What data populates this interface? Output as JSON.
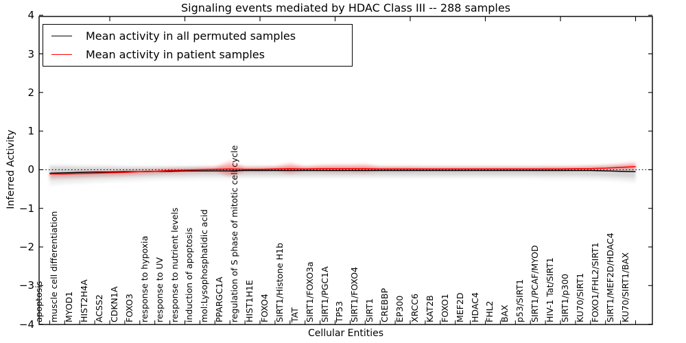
{
  "chart_data": {
    "type": "line",
    "title": "Signaling events mediated by HDAC Class III -- 288 samples",
    "xlabel": "Cellular Entities",
    "ylabel": "Inferred Activity",
    "ylim": [
      -4,
      4
    ],
    "yticks": [
      4,
      3,
      2,
      1,
      0,
      -1,
      -2,
      -3,
      -4
    ],
    "x_major_ticks": [
      5,
      10,
      15,
      20,
      25,
      30,
      35,
      40
    ],
    "grid": false,
    "legend_position": "upper left",
    "zero_line": true,
    "categories": [
      "apoptosis",
      "muscle cell differentiation",
      "MYOD1",
      "HIST2H4A",
      "ACSS2",
      "CDKN1A",
      "FOXO3",
      "response to hypoxia",
      "response to UV",
      "response to nutrient levels",
      "induction of apoptosis",
      "mol:Lysophosphatidic acid",
      "PPARGC1A",
      "regulation of S phase of mitotic cell cycle",
      "HIST1H1E",
      "FOXO4",
      "SIRT1/Histone H1b",
      "TAT",
      "SIRT1/FOXO3a",
      "SIRT1/PGC1A",
      "TP53",
      "SIRT1/FOXO4",
      "SIRT1",
      "CREBBP",
      "EP300",
      "XRCC6",
      "KAT2B",
      "FOXO1",
      "MEF2D",
      "HDAC4",
      "FHL2",
      "BAX",
      "p53/SIRT1",
      "SIRT1/PCAF/MYOD",
      "HIV-1 Tat/SIRT1",
      "SIRT1/p300",
      "KU70/SIRT1",
      "FOXO1/FHL2/SIRT1",
      "SIRT1/MEF2D/HDAC4",
      "KU70/SIRT1/BAX"
    ],
    "series": [
      {
        "name": "Mean activity in all permuted samples",
        "color": "#000000",
        "values": [
          -0.09,
          -0.08,
          -0.07,
          -0.06,
          -0.06,
          -0.05,
          -0.05,
          -0.04,
          -0.04,
          -0.03,
          -0.03,
          -0.03,
          -0.03,
          -0.02,
          -0.02,
          -0.02,
          -0.02,
          -0.02,
          -0.02,
          -0.02,
          -0.02,
          -0.02,
          -0.02,
          -0.02,
          -0.02,
          -0.02,
          -0.02,
          -0.02,
          -0.02,
          -0.02,
          -0.02,
          -0.02,
          -0.02,
          -0.02,
          -0.02,
          -0.02,
          -0.02,
          -0.03,
          -0.04,
          -0.05
        ]
      },
      {
        "name": "Mean activity in patient samples",
        "color": "#ff0000",
        "values": [
          -0.11,
          -0.11,
          -0.1,
          -0.09,
          -0.08,
          -0.07,
          -0.05,
          -0.04,
          -0.02,
          -0.01,
          0.0,
          0.01,
          0.02,
          0.01,
          0.01,
          0.02,
          0.03,
          0.02,
          0.03,
          0.03,
          0.03,
          0.03,
          0.02,
          0.02,
          0.02,
          0.02,
          0.02,
          0.02,
          0.02,
          0.02,
          0.02,
          0.02,
          0.02,
          0.02,
          0.02,
          0.03,
          0.03,
          0.04,
          0.06,
          0.08
        ]
      }
    ],
    "bands": [
      {
        "name": "permuted samples range",
        "color": "#999999",
        "upper": [
          0.08,
          0.08,
          0.07,
          0.07,
          0.07,
          0.06,
          0.06,
          0.06,
          0.06,
          0.06,
          0.06,
          0.06,
          0.06,
          0.06,
          0.06,
          0.06,
          0.06,
          0.06,
          0.06,
          0.06,
          0.06,
          0.06,
          0.06,
          0.06,
          0.06,
          0.06,
          0.06,
          0.06,
          0.06,
          0.06,
          0.06,
          0.06,
          0.06,
          0.06,
          0.06,
          0.06,
          0.07,
          0.07,
          0.08,
          0.09
        ],
        "lower": [
          -0.26,
          -0.24,
          -0.23,
          -0.21,
          -0.2,
          -0.19,
          -0.18,
          -0.17,
          -0.16,
          -0.16,
          -0.15,
          -0.15,
          -0.15,
          -0.14,
          -0.14,
          -0.14,
          -0.14,
          -0.14,
          -0.14,
          -0.14,
          -0.14,
          -0.14,
          -0.14,
          -0.14,
          -0.14,
          -0.14,
          -0.14,
          -0.14,
          -0.14,
          -0.14,
          -0.14,
          -0.14,
          -0.14,
          -0.15,
          -0.15,
          -0.15,
          -0.16,
          -0.17,
          -0.19,
          -0.21
        ]
      },
      {
        "name": "patient samples range",
        "color": "#ff0000",
        "upper": [
          -0.07,
          -0.07,
          -0.06,
          -0.05,
          -0.04,
          -0.03,
          -0.01,
          0.0,
          0.02,
          0.03,
          0.04,
          0.05,
          0.17,
          0.05,
          0.05,
          0.06,
          0.13,
          0.06,
          0.09,
          0.1,
          0.1,
          0.11,
          0.06,
          0.06,
          0.06,
          0.05,
          0.05,
          0.05,
          0.05,
          0.05,
          0.05,
          0.05,
          0.05,
          0.06,
          0.06,
          0.06,
          0.07,
          0.09,
          0.12,
          0.15
        ],
        "lower": [
          -0.15,
          -0.15,
          -0.14,
          -0.13,
          -0.12,
          -0.11,
          -0.09,
          -0.08,
          -0.06,
          -0.05,
          -0.04,
          -0.03,
          -0.13,
          -0.03,
          -0.03,
          -0.02,
          -0.07,
          -0.02,
          -0.03,
          -0.04,
          -0.04,
          -0.05,
          -0.02,
          -0.02,
          -0.02,
          -0.01,
          -0.01,
          -0.01,
          -0.01,
          -0.01,
          -0.01,
          -0.01,
          -0.01,
          -0.02,
          -0.02,
          0.0,
          0.0,
          0.0,
          0.0,
          0.01
        ]
      }
    ]
  }
}
